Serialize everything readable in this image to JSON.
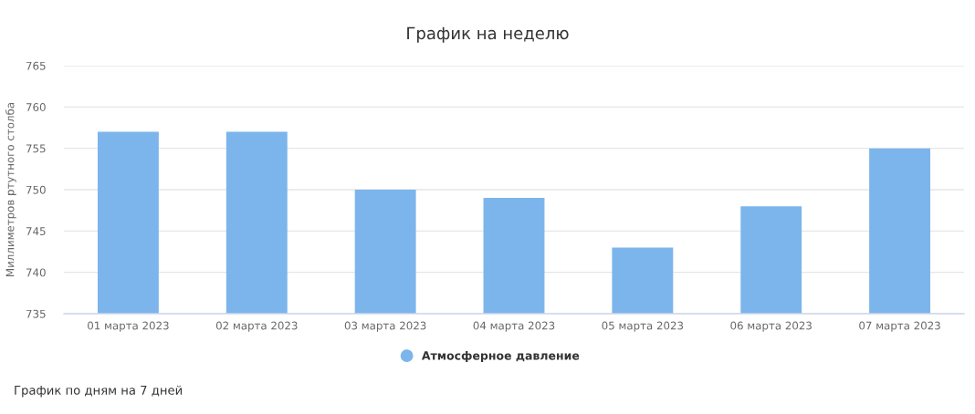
{
  "chart_data": {
    "type": "bar",
    "title": "График на неделю",
    "ylabel": "Миллиметров ртутного столба",
    "categories": [
      "01 марта 2023",
      "02 марта 2023",
      "03 марта 2023",
      "04 марта 2023",
      "05 марта 2023",
      "06 марта 2023",
      "07 марта 2023"
    ],
    "series": [
      {
        "name": "Атмосферное давление",
        "color": "#7cb5ec",
        "values": [
          757,
          757,
          750,
          749,
          743,
          748,
          755
        ]
      }
    ],
    "ylim": [
      735,
      765
    ],
    "yticks": [
      735,
      740,
      745,
      750,
      755,
      760,
      765
    ],
    "grid": "y",
    "legend": "bottom",
    "annotations": [
      "График по дням на 7 дней"
    ]
  }
}
